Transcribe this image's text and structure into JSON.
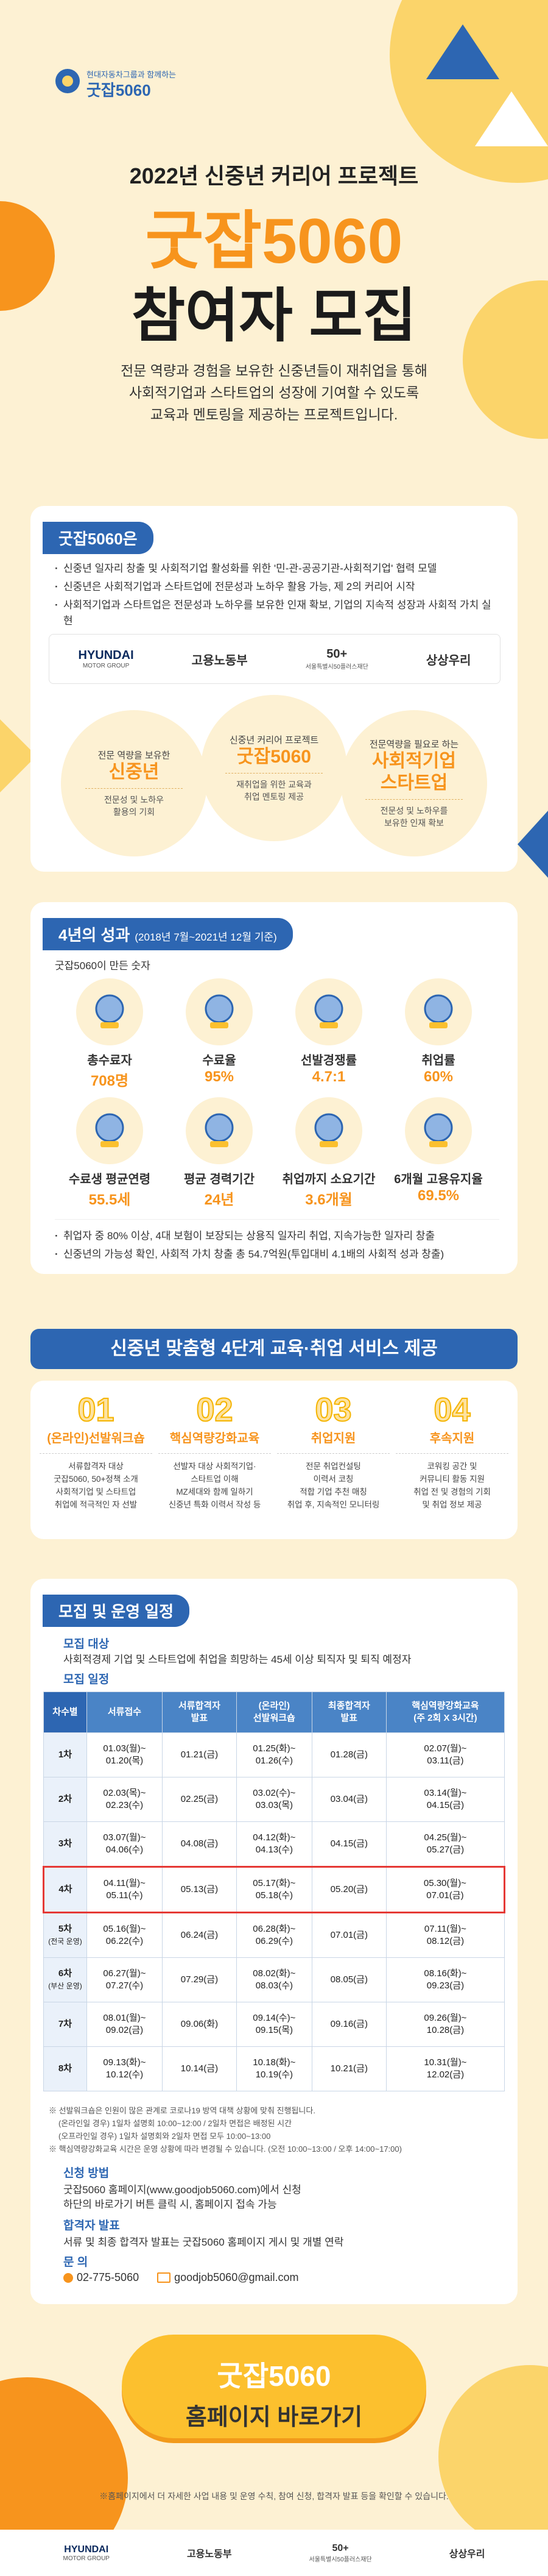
{
  "logo": {
    "tagline": "현대자동차그룹과 함께하는",
    "name": "굿잡5060"
  },
  "hero": {
    "kicker": "2022년 신중년 커리어 프로젝트",
    "title": "굿잡5060",
    "subtitle": "참여자 모집",
    "intro": [
      "전문 역량과 경험을 보유한 신중년들이 재취업을 통해",
      "사회적기업과 스타트업의 성장에 기여할 수 있도록",
      "교육과 멘토링을 제공하는 프로젝트입니다."
    ]
  },
  "partners": [
    {
      "name": "HYUNDAI",
      "sub": "MOTOR GROUP"
    },
    {
      "name": "고용노동부"
    },
    {
      "name": "50+",
      "sub": "서울특별시50플러스재단"
    },
    {
      "name": "상상우리"
    }
  ],
  "about": {
    "heading": "굿잡5060은",
    "bullets": [
      "신중년 일자리 창출 및 사회적기업 활성화를 위한 '민-관-공공기관-사회적기업' 협력 모델",
      "신중년은 사회적기업과 스타트업에 전문성과 노하우 활용 가능, 제 2의 커리어 시작",
      "사회적기업과 스타트업은 전문성과 노하우를 보유한 인재 확보, 기업의 지속적 성장과 사회적 가치 실현"
    ],
    "circles": [
      {
        "top": "전문 역량을 보유한",
        "main": [
          "신중년"
        ],
        "desc": [
          "전문성 및 노하우",
          "활용의 기회"
        ]
      },
      {
        "top": "신중년 커리어 프로젝트",
        "main": [
          "굿잡5060"
        ],
        "desc": [
          "재취업을 위한 교육과",
          "취업 멘토링 제공"
        ]
      },
      {
        "top": "전문역량을 필요로 하는",
        "main": [
          "사회적기업",
          "스타트업"
        ],
        "desc": [
          "전문성 및 노하우를",
          "보유한 인재 확보"
        ]
      }
    ]
  },
  "results": {
    "heading": "4년의 성과",
    "period": "(2018년 7월~2021년 12월 기준)",
    "subheading": "굿잡5060이 만든 숫자",
    "stats": [
      {
        "label": "총수료자",
        "value": "708명"
      },
      {
        "label": "수료율",
        "value": "95%"
      },
      {
        "label": "선발경쟁률",
        "value": "4.7:1"
      },
      {
        "label": "취업률",
        "value": "60%"
      },
      {
        "label": "수료생 평균연령",
        "value": "55.5세"
      },
      {
        "label": "평균 경력기간",
        "value": "24년"
      },
      {
        "label": "취업까지 소요기간",
        "value": "3.6개월"
      },
      {
        "label": "6개월 고용유지율",
        "value": "69.5%"
      }
    ],
    "bullets": [
      "취업자 중 80% 이상, 4대 보험이 보장되는 상용직 일자리 취업, 지속가능한 일자리 창출",
      "신중년의 가능성 확인, 사회적 가치 창출 총 54.7억원(투입대비 4.1배의 사회적 성과 창출)"
    ]
  },
  "steps": {
    "heading": "신중년 맞춤형 4단계 교육·취업 서비스 제공",
    "items": [
      {
        "number": "01",
        "title": "(온라인)선발워크숍",
        "desc": [
          "서류합격자 대상",
          "굿잡5060, 50+정책 소개",
          "사회적기업 및 스타트업",
          "취업에 적극적인 자 선발"
        ]
      },
      {
        "number": "02",
        "title": "핵심역량강화교육",
        "desc": [
          "선발자 대상 사회적기업·",
          "스타트업 이해",
          "MZ세대와 함께 일하기",
          "신중년 특화 이력서 작성 등"
        ]
      },
      {
        "number": "03",
        "title": "취업지원",
        "desc": [
          "전문 취업컨설팅",
          "이력서 코칭",
          "적합 기업 추천 매칭",
          "취업 후, 지속적인 모니터링"
        ]
      },
      {
        "number": "04",
        "title": "후속지원",
        "desc": [
          "코워킹 공간 및",
          "커뮤니티 활동 지원",
          "취업 전 및 경험의 기회",
          "및 취업 정보 제공"
        ]
      }
    ]
  },
  "schedule": {
    "heading": "모집 및 운영 일정",
    "target_label": "모집 대상",
    "target": "사회적경제 기업 및 스타트업에 취업을 희망하는 45세 이상 퇴직자 및 퇴직 예정자",
    "timeline_label": "모집 일정",
    "columns": [
      [
        "차수별"
      ],
      [
        "서류접수"
      ],
      [
        "서류합격자",
        "발표"
      ],
      [
        "(온라인)",
        "선발워크숍"
      ],
      [
        "최종합격자",
        "발표"
      ],
      [
        "핵심역량강화교육",
        "(주 2회 X 3시간)"
      ]
    ],
    "rows": [
      {
        "cells": [
          [
            "1차"
          ],
          [
            "01.03(월)~",
            "01.20(목)"
          ],
          [
            "01.21(금)"
          ],
          [
            "01.25(화)~",
            "01.26(수)"
          ],
          [
            "01.28(금)"
          ],
          [
            "02.07(월)~",
            "03.11(금)"
          ]
        ]
      },
      {
        "cells": [
          [
            "2차"
          ],
          [
            "02.03(목)~",
            "02.23(수)"
          ],
          [
            "02.25(금)"
          ],
          [
            "03.02(수)~",
            "03.03(목)"
          ],
          [
            "03.04(금)"
          ],
          [
            "03.14(월)~",
            "04.15(금)"
          ]
        ]
      },
      {
        "cells": [
          [
            "3차"
          ],
          [
            "03.07(월)~",
            "04.06(수)"
          ],
          [
            "04.08(금)"
          ],
          [
            "04.12(화)~",
            "04.13(수)"
          ],
          [
            "04.15(금)"
          ],
          [
            "04.25(월)~",
            "05.27(금)"
          ]
        ]
      },
      {
        "cells": [
          [
            "4차"
          ],
          [
            "04.11(월)~",
            "05.11(수)"
          ],
          [
            "05.13(금)"
          ],
          [
            "05.17(화)~",
            "05.18(수)"
          ],
          [
            "05.20(금)"
          ],
          [
            "05.30(월)~",
            "07.01(금)"
          ]
        ],
        "highlight": true
      },
      {
        "cells": [
          [
            "5차",
            "(전국 운영)"
          ],
          [
            "05.16(월)~",
            "06.22(수)"
          ],
          [
            "06.24(금)"
          ],
          [
            "06.28(화)~",
            "06.29(수)"
          ],
          [
            "07.01(금)"
          ],
          [
            "07.11(월)~",
            "08.12(금)"
          ]
        ]
      },
      {
        "cells": [
          [
            "6차",
            "(부산 운영)"
          ],
          [
            "06.27(월)~",
            "07.27(수)"
          ],
          [
            "07.29(금)"
          ],
          [
            "08.02(화)~",
            "08.03(수)"
          ],
          [
            "08.05(금)"
          ],
          [
            "08.16(화)~",
            "09.23(금)"
          ]
        ]
      },
      {
        "cells": [
          [
            "7차"
          ],
          [
            "08.01(월)~",
            "09.02(금)"
          ],
          [
            "09.06(화)"
          ],
          [
            "09.14(수)~",
            "09.15(목)"
          ],
          [
            "09.16(금)"
          ],
          [
            "09.26(월)~",
            "10.28(금)"
          ]
        ]
      },
      {
        "cells": [
          [
            "8차"
          ],
          [
            "09.13(화)~",
            "10.12(수)"
          ],
          [
            "10.14(금)"
          ],
          [
            "10.18(화)~",
            "10.19(수)"
          ],
          [
            "10.21(금)"
          ],
          [
            "10.31(월)~",
            "12.02(금)"
          ]
        ]
      }
    ],
    "notes": [
      "※ 선발워크숍은 인원이 많은 관계로 코로나19 방역 대책 상황에 맞춰 진행됩니다.",
      "(온라인일 경우) 1일차 설명회 10:00~12:00 / 2일차 면접은 배정된 시간",
      "(오프라인일 경우) 1일차 설명회와 2일차 면접 모두 10:00~13:00",
      "※ 핵심역량강화교육 시간은 운영 상황에 따라 변경될 수 있습니다. (오전 10:00~13:00 / 오후 14:00~17:00)"
    ],
    "apply_label": "신청 방법",
    "apply": [
      "굿잡5060 홈페이지(www.goodjob5060.com)에서 신청",
      "하단의 바로가기 버튼 클릭 시, 홈페이지 접속 가능"
    ],
    "result_label": "합격자 발표",
    "result": "서류 및 최종 합격자 발표는 굿잡5060 홈페이지 게시 및 개별 연락",
    "contact_label": "문 의",
    "phone": "02-775-5060",
    "email": "goodjob5060@gmail.com"
  },
  "button": {
    "title": "굿잡5060",
    "label": "홈페이지 바로가기"
  },
  "footer_note": "※홈페이지에서 더 자세한 사업 내용 및 운영 수칙, 참여 신청, 합격자 발표 등을 확인할 수 있습니다."
}
